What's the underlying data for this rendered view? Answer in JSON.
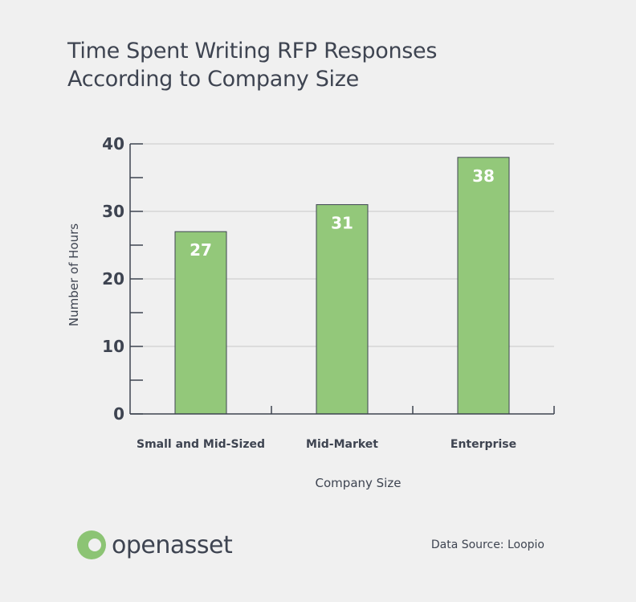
{
  "title_lines": [
    "Time Spent Writing RFP Responses",
    "According to Company Size"
  ],
  "brand": {
    "name": "openasset",
    "color": "#8cc474"
  },
  "source": "Data Source: Loopio",
  "colors": {
    "bar": "#93c87a",
    "bar_outline": "#3e4451",
    "grid": "#c8c8c8",
    "text": "#3e4451"
  },
  "chart_data": {
    "type": "bar",
    "categories": [
      "Small and Mid-Sized",
      "Mid-Market",
      "Enterprise"
    ],
    "values": [
      27,
      31,
      38
    ],
    "data_labels": [
      "27",
      "31",
      "38"
    ],
    "xlabel": "Company Size",
    "ylabel": "Number of Hours",
    "ylim": [
      0,
      40
    ],
    "yticks": [
      0,
      10,
      20,
      30,
      40
    ],
    "grid": true
  }
}
